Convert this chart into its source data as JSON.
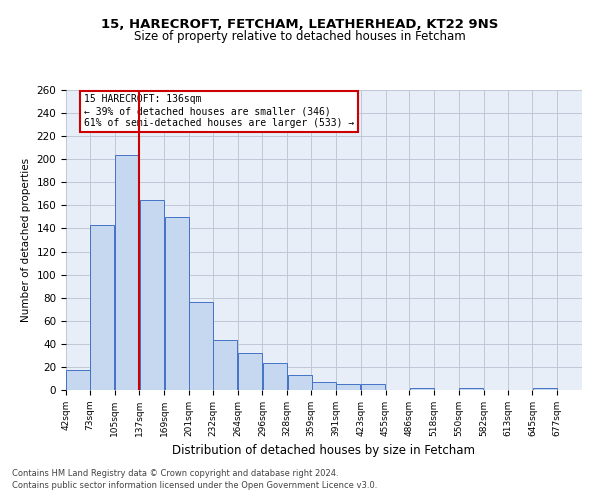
{
  "title1": "15, HARECROFT, FETCHAM, LEATHERHEAD, KT22 9NS",
  "title2": "Size of property relative to detached houses in Fetcham",
  "xlabel": "Distribution of detached houses by size in Fetcham",
  "ylabel": "Number of detached properties",
  "footer1": "Contains HM Land Registry data © Crown copyright and database right 2024.",
  "footer2": "Contains public sector information licensed under the Open Government Licence v3.0.",
  "annotation_title": "15 HARECROFT: 136sqm",
  "annotation_line2": "← 39% of detached houses are smaller (346)",
  "annotation_line3": "61% of semi-detached houses are larger (533) →",
  "property_size": 136,
  "bar_left_edges": [
    42,
    73,
    105,
    137,
    169,
    201,
    232,
    264,
    296,
    328,
    359,
    391,
    423,
    455,
    486,
    518,
    550,
    582,
    613,
    645
  ],
  "bar_values": [
    17,
    143,
    204,
    165,
    150,
    76,
    43,
    32,
    23,
    13,
    7,
    5,
    5,
    0,
    2,
    0,
    2,
    0,
    0,
    2
  ],
  "bin_width": 32,
  "bar_color": "#c5d8f0",
  "bar_edge_color": "#4472c4",
  "grid_color": "#c0c8d8",
  "vline_color": "#cc0000",
  "annotation_box_color": "#cc0000",
  "bg_color": "#e8eef8",
  "ylim": [
    0,
    260
  ],
  "yticks": [
    0,
    20,
    40,
    60,
    80,
    100,
    120,
    140,
    160,
    180,
    200,
    220,
    240,
    260
  ],
  "tick_labels": [
    "42sqm",
    "73sqm",
    "105sqm",
    "137sqm",
    "169sqm",
    "201sqm",
    "232sqm",
    "264sqm",
    "296sqm",
    "328sqm",
    "359sqm",
    "391sqm",
    "423sqm",
    "455sqm",
    "486sqm",
    "518sqm",
    "550sqm",
    "582sqm",
    "613sqm",
    "645sqm",
    "677sqm"
  ],
  "title1_fontsize": 9.5,
  "title2_fontsize": 8.5,
  "xlabel_fontsize": 8.5,
  "ylabel_fontsize": 7.5,
  "tick_fontsize": 6.5,
  "ytick_fontsize": 7.5,
  "annotation_fontsize": 7.0,
  "footer_fontsize": 6.0
}
